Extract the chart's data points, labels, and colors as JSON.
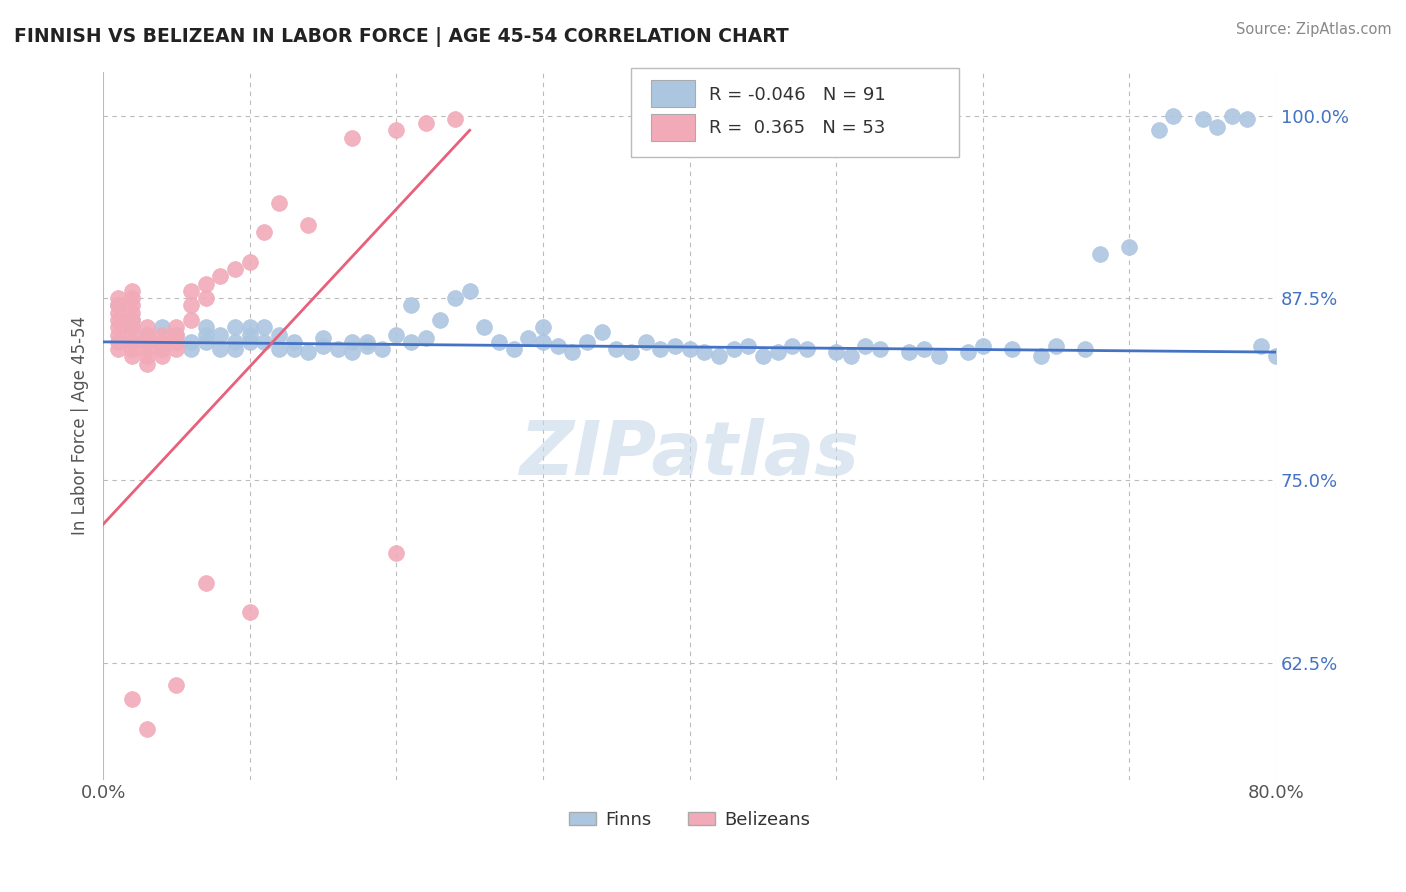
{
  "title": "FINNISH VS BELIZEAN IN LABOR FORCE | AGE 45-54 CORRELATION CHART",
  "source": "Source: ZipAtlas.com",
  "ylabel": "In Labor Force | Age 45-54",
  "xlim": [
    0.0,
    0.8
  ],
  "ylim": [
    0.545,
    1.03
  ],
  "xticks": [
    0.0,
    0.1,
    0.2,
    0.3,
    0.4,
    0.5,
    0.6,
    0.7,
    0.8
  ],
  "yticks_right": [
    0.625,
    0.75,
    0.875,
    1.0
  ],
  "ytick_labels_right": [
    "62.5%",
    "75.0%",
    "87.5%",
    "100.0%"
  ],
  "legend_r_finn": "-0.046",
  "legend_n_finn": "91",
  "legend_r_beli": "0.365",
  "legend_n_beli": "53",
  "finn_color": "#adc6e0",
  "beli_color": "#f2aab8",
  "finn_line_color": "#4472c4",
  "beli_line_color": "#e8607a",
  "watermark": "ZIPatlas",
  "finn_x": [
    0.01,
    0.02,
    0.02,
    0.03,
    0.03,
    0.04,
    0.04,
    0.05,
    0.05,
    0.06,
    0.06,
    0.07,
    0.07,
    0.07,
    0.08,
    0.08,
    0.09,
    0.09,
    0.09,
    0.1,
    0.1,
    0.1,
    0.11,
    0.11,
    0.12,
    0.12,
    0.13,
    0.13,
    0.14,
    0.15,
    0.15,
    0.16,
    0.17,
    0.17,
    0.18,
    0.18,
    0.19,
    0.2,
    0.21,
    0.21,
    0.22,
    0.23,
    0.24,
    0.25,
    0.26,
    0.27,
    0.28,
    0.29,
    0.3,
    0.3,
    0.31,
    0.32,
    0.33,
    0.34,
    0.35,
    0.36,
    0.37,
    0.38,
    0.39,
    0.4,
    0.41,
    0.42,
    0.43,
    0.44,
    0.45,
    0.46,
    0.47,
    0.48,
    0.5,
    0.51,
    0.52,
    0.53,
    0.55,
    0.56,
    0.57,
    0.59,
    0.6,
    0.62,
    0.64,
    0.65,
    0.67,
    0.68,
    0.7,
    0.72,
    0.73,
    0.75,
    0.76,
    0.77,
    0.78,
    0.79,
    0.8
  ],
  "finn_y": [
    0.87,
    0.86,
    0.855,
    0.845,
    0.85,
    0.855,
    0.84,
    0.845,
    0.85,
    0.84,
    0.845,
    0.855,
    0.85,
    0.845,
    0.84,
    0.85,
    0.845,
    0.84,
    0.855,
    0.85,
    0.855,
    0.845,
    0.855,
    0.845,
    0.84,
    0.85,
    0.84,
    0.845,
    0.838,
    0.842,
    0.848,
    0.84,
    0.845,
    0.838,
    0.845,
    0.842,
    0.84,
    0.85,
    0.87,
    0.845,
    0.848,
    0.86,
    0.875,
    0.88,
    0.855,
    0.845,
    0.84,
    0.848,
    0.845,
    0.855,
    0.842,
    0.838,
    0.845,
    0.852,
    0.84,
    0.838,
    0.845,
    0.84,
    0.842,
    0.84,
    0.838,
    0.835,
    0.84,
    0.842,
    0.835,
    0.838,
    0.842,
    0.84,
    0.838,
    0.835,
    0.842,
    0.84,
    0.838,
    0.84,
    0.835,
    0.838,
    0.842,
    0.84,
    0.835,
    0.842,
    0.84,
    0.905,
    0.91,
    0.99,
    1.0,
    0.998,
    0.992,
    1.0,
    0.998,
    0.842,
    0.835
  ],
  "beli_x": [
    0.01,
    0.01,
    0.01,
    0.01,
    0.01,
    0.01,
    0.01,
    0.01,
    0.02,
    0.02,
    0.02,
    0.02,
    0.02,
    0.02,
    0.02,
    0.02,
    0.02,
    0.02,
    0.03,
    0.03,
    0.03,
    0.03,
    0.03,
    0.03,
    0.04,
    0.04,
    0.04,
    0.04,
    0.05,
    0.05,
    0.05,
    0.05,
    0.06,
    0.06,
    0.06,
    0.07,
    0.07,
    0.08,
    0.09,
    0.1,
    0.11,
    0.12,
    0.14,
    0.17,
    0.2,
    0.22,
    0.24,
    0.02,
    0.03,
    0.05,
    0.07,
    0.1,
    0.2
  ],
  "beli_y": [
    0.84,
    0.845,
    0.85,
    0.855,
    0.86,
    0.865,
    0.87,
    0.875,
    0.835,
    0.84,
    0.845,
    0.85,
    0.855,
    0.86,
    0.865,
    0.87,
    0.875,
    0.88,
    0.83,
    0.835,
    0.84,
    0.845,
    0.85,
    0.855,
    0.835,
    0.84,
    0.845,
    0.85,
    0.84,
    0.845,
    0.85,
    0.855,
    0.86,
    0.87,
    0.88,
    0.875,
    0.885,
    0.89,
    0.895,
    0.9,
    0.92,
    0.94,
    0.925,
    0.985,
    0.99,
    0.995,
    0.998,
    0.6,
    0.58,
    0.61,
    0.68,
    0.66,
    0.7
  ]
}
